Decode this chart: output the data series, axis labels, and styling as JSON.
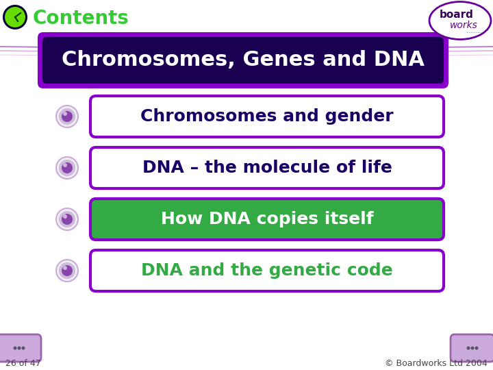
{
  "background_color": "#ffffff",
  "title_text": "Contents",
  "title_color": "#33cc33",
  "title_fontsize": 20,
  "header_text": "Chromosomes, Genes and DNA",
  "header_bg": "#1a0050",
  "header_border": "#8800cc",
  "header_text_color": "#ffffff",
  "header_fontsize": 22,
  "items": [
    {
      "text": "Chromosomes and gender",
      "bg": "#ffffff",
      "border": "#8800cc",
      "text_color": "#1a0066",
      "fontsize": 18
    },
    {
      "text": "DNA – the molecule of life",
      "bg": "#ffffff",
      "border": "#8800cc",
      "text_color": "#1a0066",
      "fontsize": 18
    },
    {
      "text": "How DNA copies itself",
      "bg": "#33aa44",
      "border": "#8800cc",
      "text_color": "#ffffff",
      "fontsize": 18
    },
    {
      "text": "DNA and the genetic code",
      "bg": "#ffffff",
      "border": "#8800cc",
      "text_color": "#33aa44",
      "fontsize": 18
    }
  ],
  "bullet_outer_color": "#ddccee",
  "bullet_outer_edge": "#ccaadd",
  "bullet_inner_color": "#8844aa",
  "footer_left": "26 of 47",
  "footer_right": "© Boardworks Ltd 2004",
  "footer_color": "#444444",
  "footer_fontsize": 9,
  "decoration_line_color": "#9955bb",
  "nav_btn_color": "#ccaadd",
  "nav_btn_edge": "#9966aa"
}
